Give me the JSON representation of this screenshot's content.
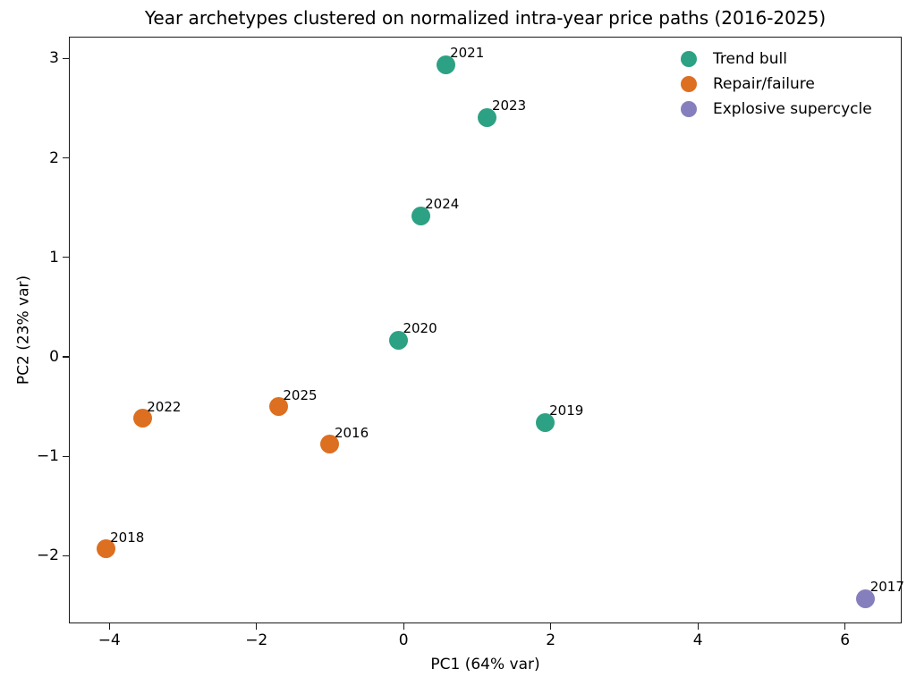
{
  "chart_data": {
    "type": "scatter",
    "title": "Year archetypes clustered on normalized intra-year price paths (2016-2025)",
    "xlabel": "PC1 (64% var)",
    "ylabel": "PC2 (23% var)",
    "xlim": [
      -4.55,
      6.77
    ],
    "ylim": [
      -2.68,
      3.22
    ],
    "xticks": [
      -4,
      -2,
      0,
      2,
      4,
      6
    ],
    "yticks": [
      3,
      2,
      1,
      0,
      -1,
      -2
    ],
    "grid": false,
    "legend_position": "upper right",
    "point_annotation_note": "each point labeled with its year at upper-right offset",
    "series": [
      {
        "name": "Trend bull",
        "color": "#2da183",
        "points": [
          {
            "label": "2021",
            "x": 0.57,
            "y": 2.94
          },
          {
            "label": "2023",
            "x": 1.14,
            "y": 2.41
          },
          {
            "label": "2024",
            "x": 0.23,
            "y": 1.42
          },
          {
            "label": "2020",
            "x": -0.07,
            "y": 0.17
          },
          {
            "label": "2019",
            "x": 1.92,
            "y": -0.66
          }
        ]
      },
      {
        "name": "Repair/failure",
        "color": "#dd6f20",
        "points": [
          {
            "label": "2025",
            "x": -1.7,
            "y": -0.5
          },
          {
            "label": "2022",
            "x": -3.55,
            "y": -0.62
          },
          {
            "label": "2016",
            "x": -1.0,
            "y": -0.88
          },
          {
            "label": "2018",
            "x": -4.05,
            "y": -1.93
          }
        ]
      },
      {
        "name": "Explosive supercycle",
        "color": "#8580bd",
        "points": [
          {
            "label": "2017",
            "x": 6.28,
            "y": -2.43
          }
        ]
      }
    ]
  }
}
